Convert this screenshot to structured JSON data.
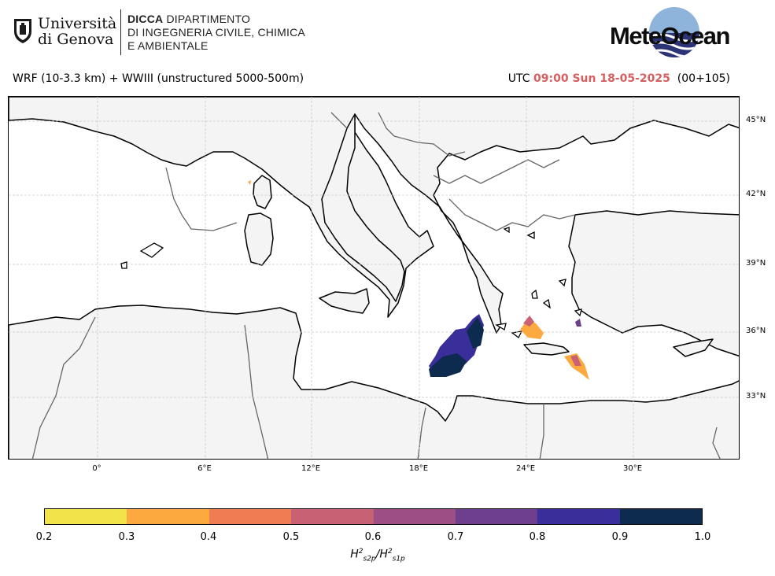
{
  "header": {
    "university": [
      "Università",
      "di Genova"
    ],
    "department": [
      "DICCA",
      "DIPARTIMENTO",
      "DI INGEGNERIA CIVILE, CHIMICA",
      "E AMBIENTALE"
    ],
    "brand": "MeteOcean"
  },
  "title": {
    "model": "WRF (10-3.3 km) + WWIII (unstructured 5000-500m)",
    "utc": "UTC",
    "datetime": "09:00 Sun 18-05-2025",
    "run": "(00+105)"
  },
  "map": {
    "lat_labels": [
      "45°N",
      "42°N",
      "39°N",
      "36°N",
      "33°N"
    ],
    "lon_labels": [
      "0°",
      "6°E",
      "12°E",
      "18°E",
      "24°E",
      "30°E"
    ]
  },
  "colorbar": {
    "ticks": [
      "0.2",
      "0.3",
      "0.4",
      "0.5",
      "0.6",
      "0.7",
      "0.8",
      "0.9",
      "1.0"
    ],
    "colors": [
      "#f3e34a",
      "#fca93f",
      "#ef7c52",
      "#c96174",
      "#9d4f84",
      "#6e3e8f",
      "#3a2e9a",
      "#0d2a4f"
    ],
    "label": "Hs2p²/Hs1p²",
    "label_main": "H",
    "label_sup": "2",
    "label_sub1": "s2p",
    "label_sub2": "s1p"
  }
}
